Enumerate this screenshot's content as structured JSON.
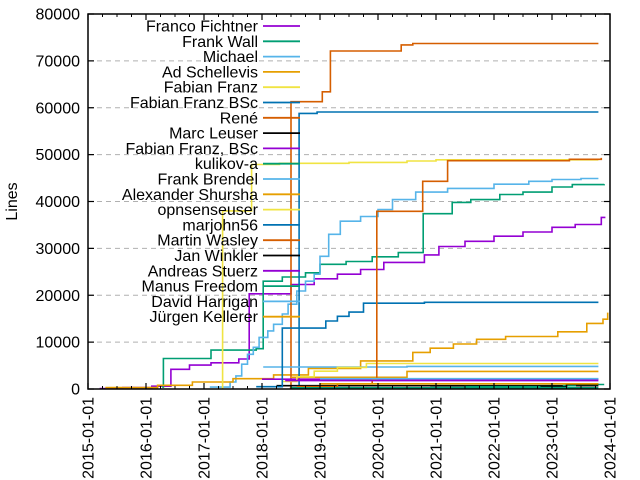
{
  "chart_data": {
    "type": "line",
    "title": "",
    "xlabel": "",
    "ylabel": "Lines",
    "ylim": [
      0,
      80000
    ],
    "y_tick_step": 10000,
    "y_tick_values": [
      0,
      10000,
      20000,
      30000,
      40000,
      50000,
      60000,
      70000,
      80000
    ],
    "x_ticks": [
      "2015-01-01",
      "2016-01-01",
      "2017-01-01",
      "2018-01-01",
      "2019-01-01",
      "2020-01-01",
      "2021-01-01",
      "2022-01-01",
      "2023-01-01",
      "2024-01-01"
    ],
    "x_tick_years": [
      2015,
      2016,
      2017,
      2018,
      2019,
      2020,
      2021,
      2022,
      2023,
      2024
    ],
    "grid": "horizontal-dashed",
    "grid_color": "#b0b0b0",
    "legend_position": "top-left-inside",
    "series": [
      {
        "name": "Franco Fichtner",
        "color": "#9400d3",
        "points": [
          [
            2015.2,
            100
          ],
          [
            2015.6,
            300
          ],
          [
            2016.1,
            600
          ],
          [
            2016.43,
            4200
          ],
          [
            2016.75,
            5100
          ],
          [
            2017.12,
            5600
          ],
          [
            2017.6,
            6400
          ],
          [
            2017.78,
            20300
          ],
          [
            2018.5,
            22300
          ],
          [
            2018.9,
            23500
          ],
          [
            2019.3,
            24500
          ],
          [
            2019.7,
            25500
          ],
          [
            2020.1,
            27000
          ],
          [
            2020.8,
            28600
          ],
          [
            2021.05,
            30400
          ],
          [
            2021.5,
            31500
          ],
          [
            2022.0,
            32600
          ],
          [
            2022.5,
            33500
          ],
          [
            2023.0,
            34500
          ],
          [
            2023.4,
            35100
          ],
          [
            2023.85,
            36600
          ],
          [
            2023.92,
            36600
          ]
        ]
      },
      {
        "name": "Frank Wall",
        "color": "#009e73",
        "points": [
          [
            2016.28,
            400
          ],
          [
            2016.3,
            6500
          ],
          [
            2017.12,
            8300
          ],
          [
            2017.9,
            8600
          ],
          [
            2018.02,
            23000
          ],
          [
            2018.35,
            23900
          ],
          [
            2018.75,
            24800
          ],
          [
            2019.0,
            26600
          ],
          [
            2019.45,
            27200
          ],
          [
            2019.9,
            28200
          ],
          [
            2020.35,
            29100
          ],
          [
            2020.78,
            37400
          ],
          [
            2021.28,
            39800
          ],
          [
            2021.6,
            40400
          ],
          [
            2022.1,
            41500
          ],
          [
            2022.5,
            42000
          ],
          [
            2023.0,
            43100
          ],
          [
            2023.35,
            43600
          ],
          [
            2023.9,
            43700
          ]
        ]
      },
      {
        "name": "Michael",
        "color": "#56b4e9",
        "points": [
          [
            2017.1,
            400
          ],
          [
            2017.45,
            1500
          ],
          [
            2017.55,
            2800
          ],
          [
            2017.65,
            5300
          ],
          [
            2017.75,
            7400
          ],
          [
            2017.85,
            8900
          ],
          [
            2017.95,
            11000
          ],
          [
            2018.1,
            12400
          ],
          [
            2018.2,
            13800
          ],
          [
            2018.35,
            16000
          ],
          [
            2018.45,
            18100
          ],
          [
            2018.6,
            20900
          ],
          [
            2018.75,
            23000
          ],
          [
            2018.9,
            24500
          ],
          [
            2019.0,
            28300
          ],
          [
            2019.15,
            33000
          ],
          [
            2019.35,
            35800
          ],
          [
            2019.7,
            36800
          ],
          [
            2020.0,
            38300
          ],
          [
            2020.25,
            40400
          ],
          [
            2020.65,
            42000
          ],
          [
            2021.2,
            42800
          ],
          [
            2022.0,
            43700
          ],
          [
            2022.6,
            44300
          ],
          [
            2023.0,
            44700
          ],
          [
            2023.5,
            44900
          ],
          [
            2023.8,
            44900
          ]
        ]
      },
      {
        "name": "Ad Schellevis",
        "color": "#e69f00",
        "points": [
          [
            2015.3,
            300
          ],
          [
            2016.2,
            800
          ],
          [
            2016.8,
            1500
          ],
          [
            2017.5,
            2200
          ],
          [
            2018.2,
            3000
          ],
          [
            2018.8,
            4400
          ],
          [
            2019.7,
            6000
          ],
          [
            2020.6,
            7800
          ],
          [
            2020.9,
            8700
          ],
          [
            2021.3,
            9600
          ],
          [
            2021.7,
            10600
          ],
          [
            2022.2,
            11200
          ],
          [
            2023.1,
            12200
          ],
          [
            2023.6,
            14000
          ],
          [
            2023.88,
            14900
          ],
          [
            2023.96,
            16300
          ]
        ]
      },
      {
        "name": "Fabian Franz",
        "color": "#f0e442",
        "points": [
          [
            2017.31,
            200
          ],
          [
            2017.32,
            38000
          ],
          [
            2017.82,
            47900
          ],
          [
            2018.3,
            48150
          ],
          [
            2019.5,
            48350
          ],
          [
            2020.5,
            48650
          ],
          [
            2021.0,
            48900
          ],
          [
            2023.8,
            48900
          ]
        ]
      },
      {
        "name": "Fabian Franz BSc",
        "color": "#0072b2",
        "points": [
          [
            2018.6,
            300
          ],
          [
            2018.64,
            58800
          ],
          [
            2018.95,
            59100
          ],
          [
            2023.8,
            59100
          ]
        ]
      },
      {
        "name": "René",
        "color": "#d55e00",
        "points": [
          [
            2018.48,
            200
          ],
          [
            2018.5,
            61300
          ],
          [
            2019.04,
            63400
          ],
          [
            2019.18,
            72100
          ],
          [
            2020.4,
            73400
          ],
          [
            2020.6,
            73700
          ],
          [
            2023.8,
            73700
          ]
        ]
      },
      {
        "name": "Marc Leuser",
        "color": "#000000",
        "points": [
          [
            2018.25,
            700
          ],
          [
            2023.8,
            700
          ]
        ]
      },
      {
        "name": "Fabian Franz, BSc",
        "color": "#9400d3",
        "points": [
          [
            2018.0,
            2100
          ],
          [
            2023.8,
            2100
          ]
        ]
      },
      {
        "name": "kulikov-a",
        "color": "#009e73",
        "points": [
          [
            2020.9,
            300
          ],
          [
            2021.5,
            500
          ],
          [
            2023.2,
            700
          ],
          [
            2023.4,
            950
          ],
          [
            2023.9,
            950
          ]
        ]
      },
      {
        "name": "Frank Brendel",
        "color": "#56b4e9",
        "points": [
          [
            2018.02,
            4700
          ],
          [
            2020.5,
            4830
          ],
          [
            2023.8,
            4830
          ]
        ]
      },
      {
        "name": "Alexander Shursha",
        "color": "#e69f00",
        "points": [
          [
            2018.5,
            2500
          ],
          [
            2020.5,
            3750
          ],
          [
            2023.8,
            3750
          ]
        ]
      },
      {
        "name": "opnsenseuser",
        "color": "#f0e442",
        "points": [
          [
            2018.35,
            1600
          ],
          [
            2018.6,
            2600
          ],
          [
            2018.9,
            3800
          ],
          [
            2019.3,
            4600
          ],
          [
            2019.8,
            5450
          ],
          [
            2023.8,
            5450
          ]
        ]
      },
      {
        "name": "marjohn56",
        "color": "#0072b2",
        "points": [
          [
            2017.9,
            500
          ],
          [
            2018.35,
            13000
          ],
          [
            2019.1,
            14500
          ],
          [
            2019.3,
            15500
          ],
          [
            2019.5,
            16400
          ],
          [
            2019.75,
            18300
          ],
          [
            2020.8,
            18500
          ],
          [
            2023.8,
            18500
          ]
        ]
      },
      {
        "name": "Martin Wasley",
        "color": "#d55e00",
        "points": [
          [
            2018.6,
            500
          ],
          [
            2019.3,
            1100
          ],
          [
            2019.9,
            2000
          ],
          [
            2019.98,
            37900
          ],
          [
            2020.77,
            44300
          ],
          [
            2021.2,
            48700
          ],
          [
            2023.3,
            49000
          ],
          [
            2023.85,
            49300
          ]
        ]
      },
      {
        "name": "Jan Winkler",
        "color": "#000000",
        "points": [
          [
            2022.8,
            400
          ],
          [
            2023.25,
            1000
          ],
          [
            2023.8,
            1000
          ]
        ]
      },
      {
        "name": "Andreas Stuerz",
        "color": "#9400d3",
        "points": [
          [
            2018.4,
            1800
          ],
          [
            2023.8,
            1800
          ]
        ]
      },
      {
        "name": "Manus Freedom",
        "color": "#009e73",
        "points": [
          [
            2018.5,
            250
          ],
          [
            2023.8,
            250
          ]
        ]
      },
      {
        "name": "David Harrigan",
        "color": "#56b4e9",
        "points": [
          [
            2019.0,
            2200
          ],
          [
            2023.8,
            2200
          ]
        ]
      },
      {
        "name": "Jürgen Kellerer",
        "color": "#e69f00",
        "points": [
          [
            2019.0,
            1100
          ],
          [
            2023.8,
            1100
          ]
        ]
      }
    ]
  }
}
